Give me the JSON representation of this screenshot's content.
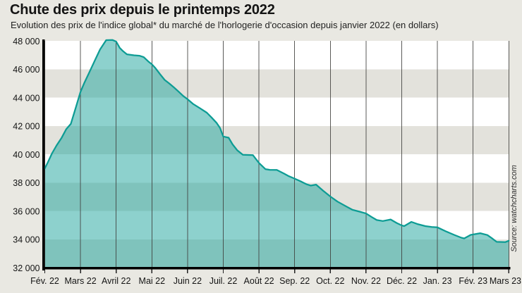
{
  "header": {
    "title": "Chute des prix depuis le printemps 2022",
    "subtitle": "Evolution des prix de l'indice global* du marché de l'horlogerie d'occasion depuis janvier 2022 (en dollars)"
  },
  "source": "Source: watchcharts.com",
  "chart_data": {
    "type": "area",
    "title": "Chute des prix depuis le printemps 2022",
    "subtitle": "Evolution des prix de l'indice global* du marché de l'horlogerie d'occasion depuis janvier 2022 (en dollars)",
    "unit": "dollars",
    "x_tick_labels": [
      "Fév. 22",
      "Mars 22",
      "Avril 22",
      "Mai 22",
      "Juin 22",
      "Juil. 22",
      "Août 22",
      "Sep. 22",
      "Oct. 22",
      "Nov. 22",
      "Déc. 22",
      "Jan. 23",
      "Fév. 23",
      "Mars 23"
    ],
    "y_ticks": [
      32000,
      34000,
      36000,
      38000,
      40000,
      42000,
      44000,
      46000,
      48000
    ],
    "y_tick_labels": [
      "32 000",
      "34 000",
      "36 000",
      "38 000",
      "40 000",
      "42 000",
      "44 000",
      "46 000",
      "48 000"
    ],
    "ylim": [
      32000,
      48000
    ],
    "grid": "vertical-monthly, horizontal alternating bands of 2000",
    "legend": "none",
    "monthly_values_at_gridlines": [
      39000,
      44400,
      47950,
      46350,
      43900,
      41250,
      39400,
      38280,
      37020,
      35820,
      34980,
      34840,
      34340,
      33900
    ],
    "peak_value": 48060,
    "points": [
      [
        0.0,
        39000
      ],
      [
        0.08,
        39400
      ],
      [
        0.2,
        40050
      ],
      [
        0.33,
        40620
      ],
      [
        0.47,
        41160
      ],
      [
        0.6,
        41770
      ],
      [
        0.73,
        42140
      ],
      [
        0.87,
        43300
      ],
      [
        1.0,
        44400
      ],
      [
        1.1,
        45000
      ],
      [
        1.25,
        45800
      ],
      [
        1.4,
        46600
      ],
      [
        1.55,
        47400
      ],
      [
        1.72,
        48050
      ],
      [
        1.9,
        48060
      ],
      [
        2.0,
        47950
      ],
      [
        2.1,
        47500
      ],
      [
        2.18,
        47300
      ],
      [
        2.3,
        47050
      ],
      [
        2.5,
        46980
      ],
      [
        2.65,
        46950
      ],
      [
        2.77,
        46850
      ],
      [
        2.9,
        46550
      ],
      [
        3.0,
        46350
      ],
      [
        3.1,
        46070
      ],
      [
        3.23,
        45650
      ],
      [
        3.36,
        45240
      ],
      [
        3.49,
        44990
      ],
      [
        3.62,
        44710
      ],
      [
        3.75,
        44410
      ],
      [
        3.88,
        44110
      ],
      [
        4.0,
        43880
      ],
      [
        4.15,
        43560
      ],
      [
        4.34,
        43260
      ],
      [
        4.54,
        42930
      ],
      [
        4.67,
        42600
      ],
      [
        4.81,
        42220
      ],
      [
        4.91,
        41860
      ],
      [
        5.0,
        41250
      ],
      [
        5.15,
        41170
      ],
      [
        5.26,
        40700
      ],
      [
        5.39,
        40290
      ],
      [
        5.55,
        39960
      ],
      [
        5.83,
        39940
      ],
      [
        6.0,
        39390
      ],
      [
        6.18,
        38950
      ],
      [
        6.3,
        38900
      ],
      [
        6.5,
        38890
      ],
      [
        6.7,
        38640
      ],
      [
        6.84,
        38450
      ],
      [
        7.0,
        38280
      ],
      [
        7.2,
        38050
      ],
      [
        7.34,
        37880
      ],
      [
        7.45,
        37790
      ],
      [
        7.6,
        37860
      ],
      [
        7.8,
        37420
      ],
      [
        8.0,
        37020
      ],
      [
        8.2,
        36660
      ],
      [
        8.43,
        36340
      ],
      [
        8.62,
        36080
      ],
      [
        8.82,
        35950
      ],
      [
        9.0,
        35820
      ],
      [
        9.16,
        35570
      ],
      [
        9.3,
        35360
      ],
      [
        9.47,
        35290
      ],
      [
        9.69,
        35400
      ],
      [
        9.86,
        35150
      ],
      [
        10.0,
        34980
      ],
      [
        10.07,
        34930
      ],
      [
        10.27,
        35230
      ],
      [
        10.46,
        35060
      ],
      [
        10.66,
        34930
      ],
      [
        10.84,
        34870
      ],
      [
        11.0,
        34840
      ],
      [
        11.24,
        34560
      ],
      [
        11.47,
        34310
      ],
      [
        11.67,
        34110
      ],
      [
        11.75,
        34060
      ],
      [
        11.93,
        34310
      ],
      [
        12.0,
        34340
      ],
      [
        12.2,
        34430
      ],
      [
        12.4,
        34300
      ],
      [
        12.55,
        34030
      ],
      [
        12.66,
        33820
      ],
      [
        12.9,
        33800
      ],
      [
        13.0,
        33900
      ]
    ],
    "colors": {
      "background": "#e9e8e2",
      "band_light": "#ffffff",
      "band_dark": "#e3e2dc",
      "area_fill": "#1ca49c",
      "area_fill_opacity": 0.5,
      "line": "#0d9c94",
      "gridline": "#3e3e3c",
      "axis": "#000000",
      "label_text": "#141414"
    }
  }
}
